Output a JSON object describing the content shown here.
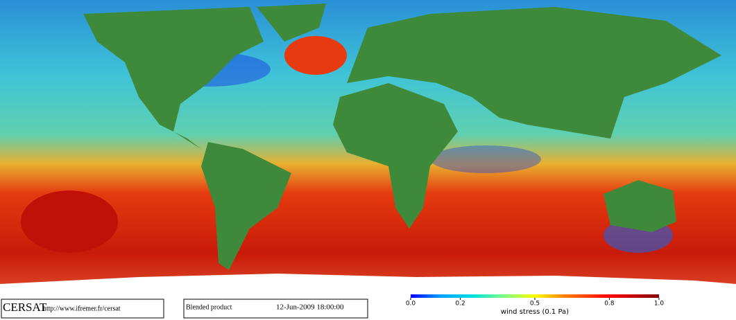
{
  "footer": {
    "logo": "CERSAT",
    "url": "http://www.ifremer.fr/cersat",
    "product": "Blended product",
    "date": "12-Jun-2009 18:00:00"
  },
  "colorbar": {
    "label": "wind stress (0.1 Pa)",
    "range": [
      0,
      1
    ],
    "ticks": [
      {
        "value": 0,
        "label": "0.0"
      },
      0.2,
      0.5,
      0.8,
      {
        "value": 1,
        "label": "1.0"
      }
    ]
  }
}
